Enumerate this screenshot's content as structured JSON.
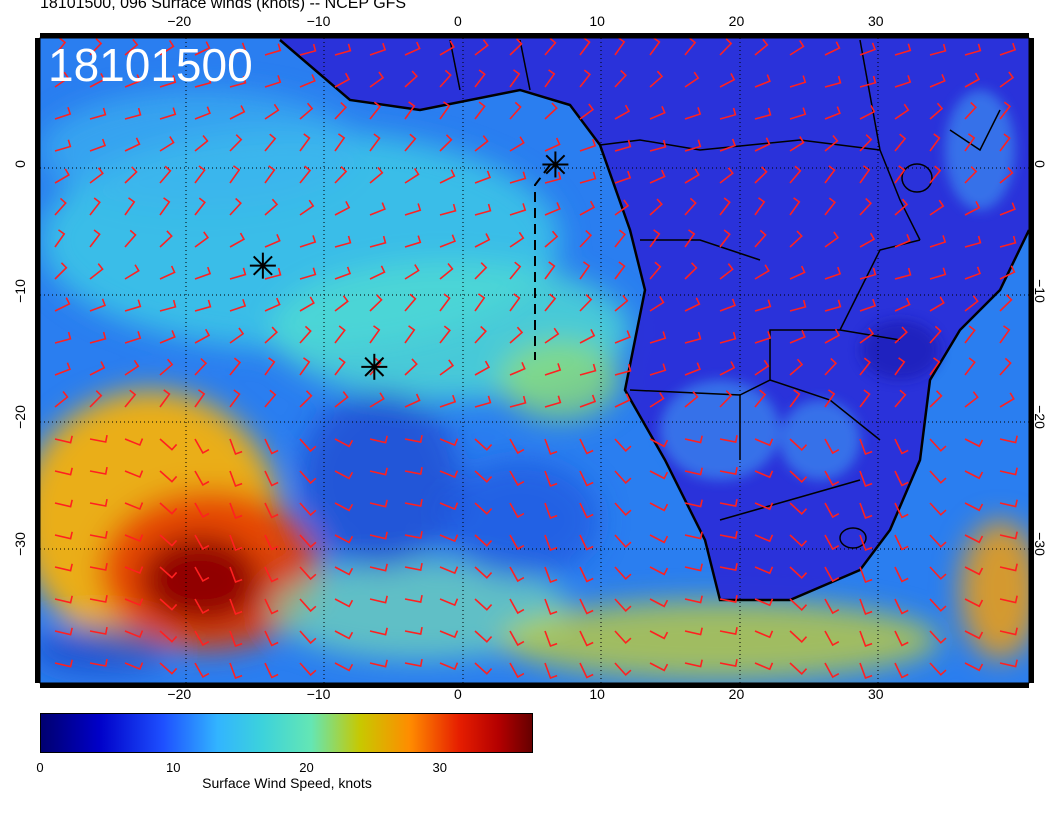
{
  "title": "18101500, 096 Surface winds (knots) -- NCEP GFS",
  "stamp": "18101500",
  "map": {
    "lon_range": [
      -30,
      41
    ],
    "lat_range": [
      -41,
      10
    ],
    "lon_ticks": [
      "−20",
      "−10",
      "0",
      "10",
      "20",
      "30"
    ],
    "lat_ticks": [
      "0",
      "−10",
      "−20",
      "−30"
    ],
    "markers": [
      {
        "symbol": "asterisk",
        "lon": 7,
        "lat": 0
      },
      {
        "symbol": "asterisk",
        "lon": -14,
        "lat": -8
      },
      {
        "symbol": "asterisk",
        "lon": -6,
        "lat": -16
      }
    ]
  },
  "colorbar": {
    "label": "Surface Wind Speed, knots",
    "range": [
      0,
      37
    ],
    "ticks": [
      "0",
      "10",
      "20",
      "30"
    ],
    "colors": [
      "#00006e",
      "#0000c8",
      "#1e50ff",
      "#32b4ff",
      "#3cd2dc",
      "#64e6b4",
      "#c8c800",
      "#ff8c00",
      "#e61e00",
      "#b40000",
      "#640000"
    ]
  },
  "colors": {
    "wind_barbs": "#ff2020",
    "land_base": "#2a2ed8",
    "ocean_base": "#2a7ef0"
  }
}
